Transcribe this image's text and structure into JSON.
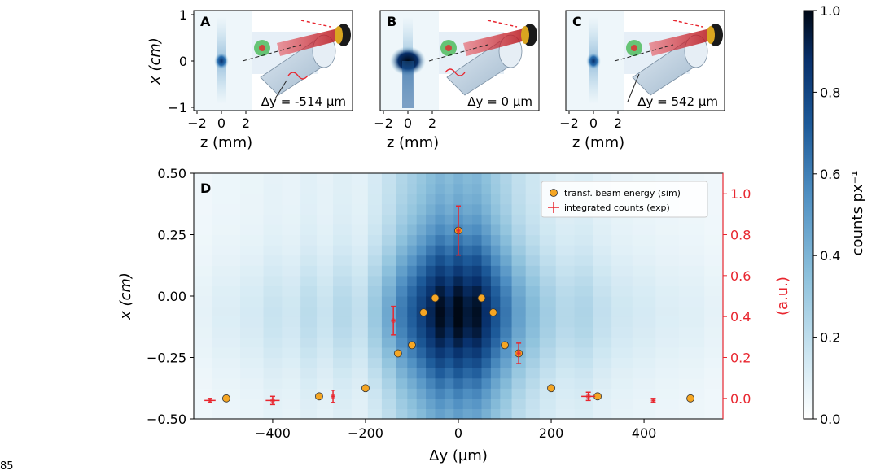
{
  "page_number": "85",
  "colorbar": {
    "label": "counts px⁻¹",
    "min": 0.0,
    "max": 1.0,
    "ticks": [
      "0.0",
      "0.2",
      "0.4",
      "0.6",
      "0.8",
      "1.0"
    ],
    "colors": [
      "#ffffff",
      "#cfe7f2",
      "#8dc1dc",
      "#4f8fc2",
      "#1d5a99",
      "#08306b",
      "#000814"
    ]
  },
  "insets": [
    {
      "letter": "A",
      "dy_label": "Δy = -514 µm",
      "spot": "small"
    },
    {
      "letter": "B",
      "dy_label": "Δy = 0 µm",
      "spot": "large"
    },
    {
      "letter": "C",
      "dy_label": "Δy = 542 µm",
      "spot": "small"
    }
  ],
  "inset_axes": {
    "ylabel": "x (cm)",
    "xlabel": "z (mm)",
    "yticks": [
      "1",
      "0",
      "−1"
    ],
    "xticks": [
      "−2",
      "0",
      "2"
    ]
  },
  "chart_data": {
    "type": "scatter",
    "panel_letter": "D",
    "xlabel": "Δy (µm)",
    "ylabel": "x (cm)",
    "y2label": "(a.u.)",
    "xlim": [
      -570,
      570
    ],
    "ylim": [
      -0.5,
      0.5
    ],
    "y2lim": [
      -0.1,
      1.1
    ],
    "xticks": [
      "−400",
      "−200",
      "0",
      "200",
      "400"
    ],
    "xtick_values": [
      -400,
      -200,
      0,
      200,
      400
    ],
    "yticks": [
      "0.50",
      "0.25",
      "0.00",
      "−0.25",
      "−0.50"
    ],
    "ytick_values": [
      0.5,
      0.25,
      0.0,
      -0.25,
      -0.5
    ],
    "y2ticks": [
      "1.0",
      "0.8",
      "0.6",
      "0.4",
      "0.2",
      "0.0"
    ],
    "y2tick_values": [
      1.0,
      0.8,
      0.6,
      0.4,
      0.2,
      0.0
    ],
    "legend_position": "top-right",
    "series": [
      {
        "name": "transf. beam energy (sim)",
        "color": "#f5a623",
        "x": [
          -500,
          -300,
          -200,
          -130,
          -100,
          -75,
          -50,
          0,
          50,
          75,
          100,
          130,
          200,
          300,
          500
        ],
        "y": [
          0.0,
          0.01,
          0.05,
          0.22,
          0.26,
          0.42,
          0.49,
          0.82,
          0.49,
          0.42,
          0.26,
          0.22,
          0.05,
          0.01,
          0.0
        ]
      },
      {
        "name": "integrated counts (exp)",
        "color": "#e8262f",
        "x": [
          -535,
          -400,
          -270,
          -140,
          0,
          130,
          280,
          420
        ],
        "y": [
          -0.01,
          -0.01,
          0.01,
          0.38,
          0.82,
          0.22,
          0.01,
          -0.01
        ],
        "yerr": [
          0.01,
          0.02,
          0.03,
          0.07,
          0.12,
          0.05,
          0.02,
          0.01
        ],
        "xerr": [
          12,
          15,
          3,
          3,
          3,
          3,
          15,
          3
        ]
      }
    ],
    "heatmap_columns": [
      {
        "dy": -560,
        "i": 0.05
      },
      {
        "dy": -500,
        "i": 0.08
      },
      {
        "dy": -440,
        "i": 0.1
      },
      {
        "dy": -400,
        "i": 0.14
      },
      {
        "dy": -360,
        "i": 0.12
      },
      {
        "dy": -320,
        "i": 0.18
      },
      {
        "dy": -290,
        "i": 0.14
      },
      {
        "dy": -250,
        "i": 0.2
      },
      {
        "dy": -210,
        "i": 0.16
      },
      {
        "dy": -180,
        "i": 0.28
      },
      {
        "dy": -150,
        "i": 0.42
      },
      {
        "dy": -120,
        "i": 0.58
      },
      {
        "dy": -100,
        "i": 0.68
      },
      {
        "dy": -80,
        "i": 0.78
      },
      {
        "dy": -60,
        "i": 0.88
      },
      {
        "dy": -40,
        "i": 0.96
      },
      {
        "dy": -20,
        "i": 0.9
      },
      {
        "dy": 0,
        "i": 0.98
      },
      {
        "dy": 20,
        "i": 0.92
      },
      {
        "dy": 40,
        "i": 0.95
      },
      {
        "dy": 60,
        "i": 0.85
      },
      {
        "dy": 80,
        "i": 0.72
      },
      {
        "dy": 100,
        "i": 0.6
      },
      {
        "dy": 130,
        "i": 0.45
      },
      {
        "dy": 160,
        "i": 0.35
      },
      {
        "dy": 190,
        "i": 0.26
      },
      {
        "dy": 230,
        "i": 0.2
      },
      {
        "dy": 270,
        "i": 0.22
      },
      {
        "dy": 310,
        "i": 0.16
      },
      {
        "dy": 350,
        "i": 0.12
      },
      {
        "dy": 400,
        "i": 0.1
      },
      {
        "dy": 450,
        "i": 0.08
      },
      {
        "dy": 500,
        "i": 0.07
      },
      {
        "dy": 560,
        "i": 0.05
      }
    ]
  }
}
